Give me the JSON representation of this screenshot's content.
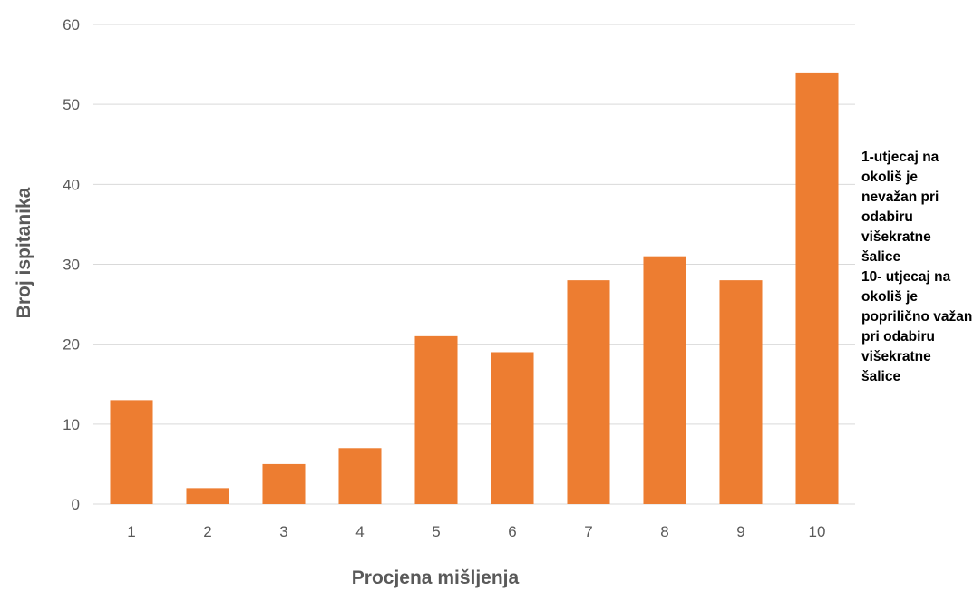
{
  "chart_data": {
    "type": "bar",
    "categories": [
      "1",
      "2",
      "3",
      "4",
      "5",
      "6",
      "7",
      "8",
      "9",
      "10"
    ],
    "values": [
      13,
      2,
      5,
      7,
      21,
      19,
      28,
      31,
      28,
      54
    ],
    "xlabel": "Procjena mišljenja",
    "ylabel": "Broj ispitanika",
    "ylim": [
      0,
      60
    ],
    "yticks": [
      0,
      10,
      20,
      30,
      40,
      50,
      60
    ],
    "grid": true,
    "bar_color": "#ED7D31",
    "annotation": "1-utjecaj na okoliš je nevažan pri odabiru višekratne šalice\n10- utjecaj na okoliš je poprilično važan pri odabiru višekratne šalice"
  }
}
